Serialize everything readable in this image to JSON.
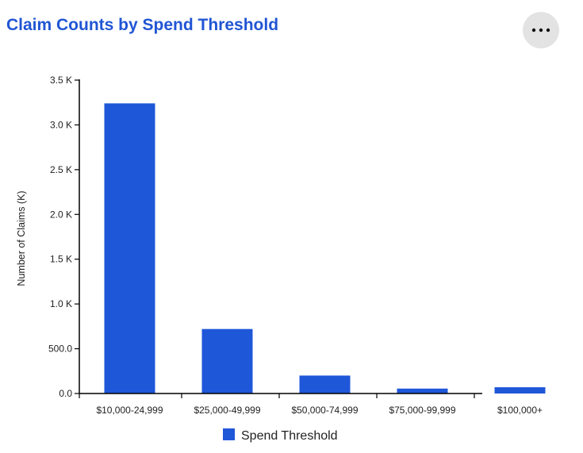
{
  "header": {
    "title": "Claim Counts by Spend Threshold",
    "more_options_icon": "more-horizontal-icon"
  },
  "chart_data": {
    "type": "bar",
    "title": "Claim Counts by Spend Threshold",
    "categories": [
      "$10,000-24,999",
      "$25,000-49,999",
      "$50,000-74,999",
      "$75,000-99,999",
      "$100,000+"
    ],
    "series": [
      {
        "name": "Spend Threshold",
        "values": [
          3240,
          720,
          200,
          55,
          70
        ],
        "color": "#1f57d9"
      }
    ],
    "xlabel": "",
    "ylabel": "Number of Claims (K)",
    "ylim": [
      0,
      3500
    ],
    "yticks": [
      0,
      500,
      1000,
      1500,
      2000,
      2500,
      3000,
      3500
    ],
    "ytick_labels": [
      "0.0",
      "500.0",
      "1.0 K",
      "1.5 K",
      "2.0 K",
      "2.5 K",
      "3.0 K",
      "3.5 K"
    ],
    "grid": false,
    "legend": {
      "position": "bottom-center"
    }
  }
}
